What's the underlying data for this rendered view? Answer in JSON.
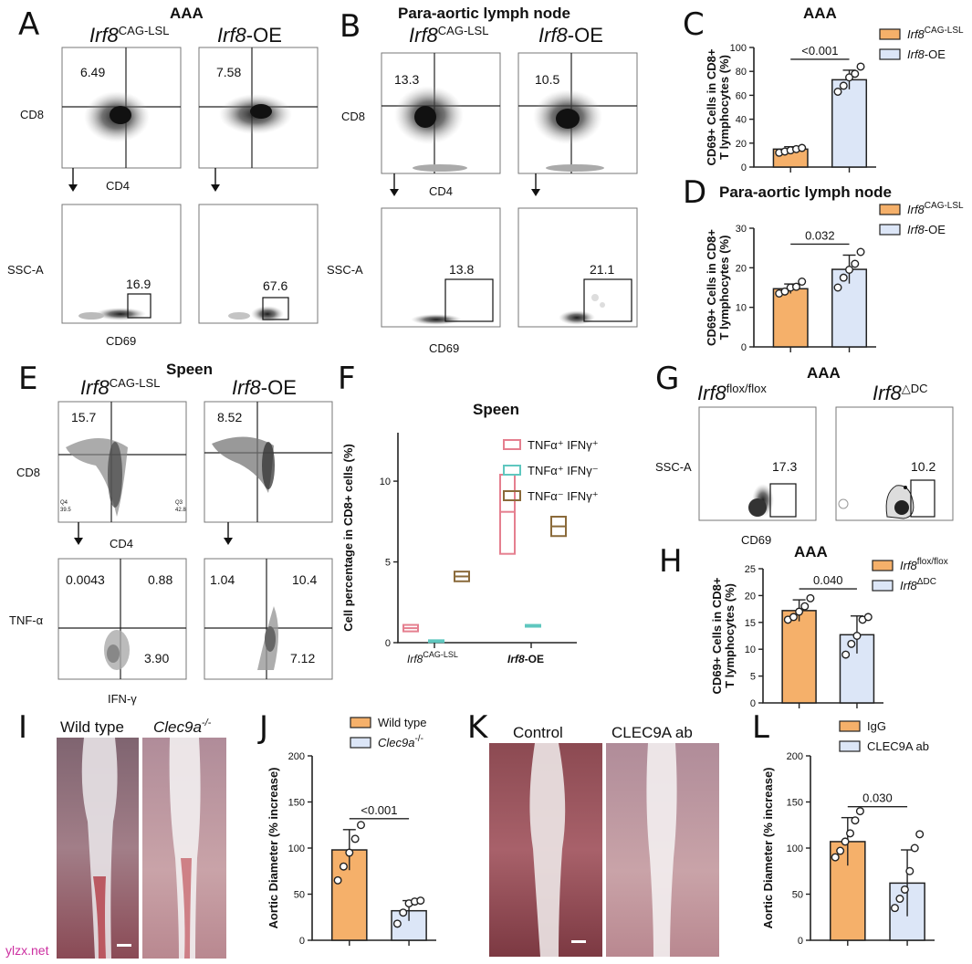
{
  "panelA": {
    "letter": "A",
    "title": "AAA",
    "groups": [
      {
        "name": "Irf8",
        "sup": "CAG-LSL"
      },
      {
        "name": "Irf8",
        "suffix": "-OE"
      }
    ],
    "top": {
      "ylabel": "CD8",
      "xlabel": "CD4",
      "gates": [
        "6.49",
        "7.58"
      ]
    },
    "bottom": {
      "ylabel": "SSC-A",
      "xlabel": "CD69",
      "gates": [
        "16.9",
        "67.6"
      ]
    }
  },
  "panelB": {
    "letter": "B",
    "title": "Para-aortic lymph node",
    "groups": [
      {
        "name": "Irf8",
        "sup": "CAG-LSL"
      },
      {
        "name": "Irf8",
        "suffix": "-OE"
      }
    ],
    "top": {
      "ylabel": "CD8",
      "xlabel": "CD4",
      "gates": [
        "13.3",
        "10.5"
      ]
    },
    "bottom": {
      "ylabel": "SSC-A",
      "xlabel": "CD69",
      "gates": [
        "13.8",
        "21.1"
      ]
    }
  },
  "panelE": {
    "letter": "E",
    "title": "Speen",
    "groups": [
      {
        "name": "Irf8",
        "sup": "CAG-LSL"
      },
      {
        "name": "Irf8",
        "suffix": "-OE"
      }
    ],
    "top": {
      "ylabel": "CD8",
      "xlabel": "CD4",
      "gates": [
        "15.7",
        "8.52"
      ],
      "tiny": [
        "Q4",
        "39.5",
        "Q3",
        "42.8"
      ]
    },
    "bottom": {
      "ylabel": "TNF-α",
      "xlabel": "IFN-γ",
      "quads": [
        [
          "0.0043",
          "0.88",
          "3.90"
        ],
        [
          "1.04",
          "10.4",
          "7.12"
        ]
      ]
    }
  },
  "panelG": {
    "letter": "G",
    "title": "AAA",
    "groups": [
      {
        "name": "Irf8",
        "sup": "flox/flox"
      },
      {
        "name": "Irf8",
        "sup": "△DC"
      }
    ],
    "ylabel": "SSC-A",
    "xlabel": "CD69",
    "gates": [
      "17.3",
      "10.2"
    ]
  },
  "panelI": {
    "letter": "I",
    "labels": [
      "Wild type",
      "Clec9a"
    ],
    "sup": "-/-"
  },
  "panelK": {
    "letter": "K",
    "labels": [
      "Control",
      "CLEC9A ab"
    ]
  },
  "watermark": "ylzx.net",
  "chart_data": [
    {
      "id": "C",
      "type": "bar",
      "title": "AAA",
      "ylabel": "CD69+ Cells in CD8+ T lymphocytes (%)",
      "categories": [
        "Irf8 CAG-LSL",
        "Irf8-OE"
      ],
      "values": [
        15,
        73
      ],
      "errors": [
        2,
        8
      ],
      "points": [
        [
          12,
          13,
          14,
          15,
          16
        ],
        [
          63,
          68,
          75,
          78,
          84
        ]
      ],
      "ylim": [
        0,
        100
      ],
      "yticks": [
        0,
        20,
        40,
        60,
        80,
        100
      ],
      "pvalue": "<0.001",
      "legend": [
        {
          "name": "Irf8",
          "sup": "CAG-LSL"
        },
        {
          "name": "Irf8",
          "suffix": "-OE"
        }
      ],
      "colors": [
        "#f5b06a",
        "#dce6f7"
      ]
    },
    {
      "id": "D",
      "type": "bar",
      "title": "Para-aortic lymph node",
      "ylabel": "CD69+ Cells in CD8+ T lymphocytes (%)",
      "categories": [
        "Irf8 CAG-LSL",
        "Irf8-OE"
      ],
      "values": [
        14.7,
        19.6
      ],
      "errors": [
        1.2,
        3.6
      ],
      "points": [
        [
          13.5,
          14,
          15,
          15.2,
          16.5
        ],
        [
          15,
          17.5,
          19.5,
          21,
          24
        ]
      ],
      "ylim": [
        0,
        30
      ],
      "yticks": [
        0,
        10,
        20,
        30
      ],
      "pvalue": "0.032",
      "legend": [
        {
          "name": "Irf8",
          "sup": "CAG-LSL"
        },
        {
          "name": "Irf8",
          "suffix": "-OE"
        }
      ],
      "colors": [
        "#f5b06a",
        "#dce6f7"
      ]
    },
    {
      "id": "F",
      "type": "box",
      "title": "Speen",
      "ylabel": "Cell percentage in CD8+ cells (%)",
      "categories": [
        "Irf8 CAG-LSL",
        "Irf8-OE"
      ],
      "series": [
        {
          "name": "TNFα+ IFNγ+",
          "color": "#e57f8f",
          "boxes": [
            [
              0.7,
              1.1,
              0.9
            ],
            [
              5.5,
              10.4,
              8.1
            ]
          ]
        },
        {
          "name": "TNFα+ IFNγ-",
          "color": "#5fc7bf",
          "boxes": [
            [
              0.05,
              0.15,
              0.1
            ],
            [
              1.0,
              1.1,
              1.05
            ]
          ]
        },
        {
          "name": "TNFα- IFNγ+",
          "color": "#8a6a3a",
          "boxes": [
            [
              3.8,
              4.4,
              4.1
            ],
            [
              6.6,
              7.8,
              7.2
            ]
          ]
        }
      ],
      "ylim": [
        0,
        13
      ],
      "yticks": [
        0,
        5,
        10
      ],
      "legend_labels": [
        "TNFα⁺ IFNγ⁺",
        "TNFα⁺ IFNγ⁻",
        "TNFα⁻ IFNγ⁺"
      ]
    },
    {
      "id": "H",
      "type": "bar",
      "title": "AAA",
      "ylabel": "CD69+ Cells in CD8+ T lymphocytes (%)",
      "categories": [
        "Irf8 flox/flox",
        "Irf8 ΔDC"
      ],
      "values": [
        17.2,
        12.7
      ],
      "errors": [
        2,
        3.5
      ],
      "points": [
        [
          15.5,
          16,
          17,
          18,
          19.5
        ],
        [
          9,
          11,
          12.5,
          15.5,
          16
        ]
      ],
      "ylim": [
        0,
        25
      ],
      "yticks": [
        0,
        5,
        10,
        15,
        20,
        25
      ],
      "pvalue": "0.040",
      "legend": [
        {
          "name": "Irf8",
          "sup": "flox/flox"
        },
        {
          "name": "Irf8",
          "sup": "ΔDC"
        }
      ],
      "colors": [
        "#f5b06a",
        "#dce6f7"
      ]
    },
    {
      "id": "J",
      "type": "bar",
      "title": "",
      "ylabel": "Aortic Diameter (% increase)",
      "categories": [
        "Wild type",
        "Clec9a-/-"
      ],
      "values": [
        98,
        32
      ],
      "errors": [
        22,
        11
      ],
      "points": [
        [
          65,
          80,
          95,
          110,
          125
        ],
        [
          18,
          30,
          40,
          42,
          43
        ]
      ],
      "ylim": [
        0,
        200
      ],
      "yticks": [
        0,
        50,
        100,
        150,
        200
      ],
      "pvalue": "<0.001",
      "legend": [
        {
          "name": "Wild type"
        },
        {
          "name": "Clec9a",
          "sup": "-/-"
        }
      ],
      "colors": [
        "#f5b06a",
        "#dce6f7"
      ]
    },
    {
      "id": "L",
      "type": "bar",
      "title": "",
      "ylabel": "Aortic Diameter (% increase)",
      "categories": [
        "IgG",
        "CLEC9A ab"
      ],
      "values": [
        107,
        62
      ],
      "errors": [
        26,
        36
      ],
      "points": [
        [
          90,
          97,
          107,
          116,
          130,
          140
        ],
        [
          35,
          45,
          55,
          75,
          100,
          115
        ]
      ],
      "ylim": [
        0,
        200
      ],
      "yticks": [
        0,
        50,
        100,
        150,
        200
      ],
      "pvalue": "0.030",
      "legend": [
        {
          "name": "IgG"
        },
        {
          "name": "CLEC9A ab"
        }
      ],
      "colors": [
        "#f5b06a",
        "#dce6f7"
      ]
    }
  ]
}
